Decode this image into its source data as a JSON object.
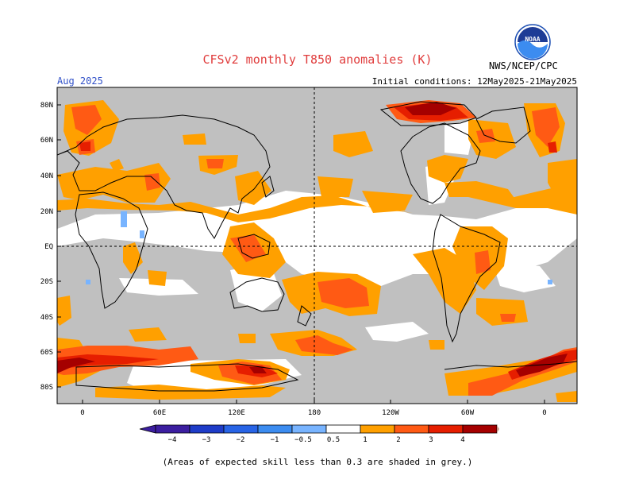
{
  "header": {
    "title": "CFSv2 monthly T850 anomalies (K)",
    "org_label": "NWS/NCEP/CPC",
    "logo_text": "NOAA",
    "month": "Aug 2025",
    "initial_conditions": "Initial conditions: 12May2025-21May2025"
  },
  "map": {
    "lat_labels": [
      "80N",
      "60N",
      "40N",
      "20N",
      "EQ",
      "20S",
      "40S",
      "60S",
      "80S"
    ],
    "lon_labels": [
      "0",
      "60E",
      "120E",
      "180",
      "120W",
      "60W",
      "0"
    ],
    "colors": {
      "grey_low_skill": "#c0c0c0",
      "neutral": "#ffffff",
      "light_blue": "#78b4ff",
      "orange": "#ffa000",
      "orange_red": "#ff5a14",
      "red": "#e61e00",
      "dark_red": "#a50000"
    }
  },
  "colorbar": {
    "ticks": [
      "−4",
      "−3",
      "−2",
      "−1",
      "−0.5",
      "0.5",
      "1",
      "2",
      "3",
      "4"
    ],
    "colors": [
      "#3c1ea0",
      "#1e3cc8",
      "#2864e6",
      "#3c8cf0",
      "#78b4ff",
      "#ffffff",
      "#ffa000",
      "#ff5a14",
      "#e61e00",
      "#a50000",
      "#c89b8c",
      "#7d4a3a"
    ]
  },
  "footnote": "(Areas of expected skill less than 0.3 are shaded in grey.)"
}
